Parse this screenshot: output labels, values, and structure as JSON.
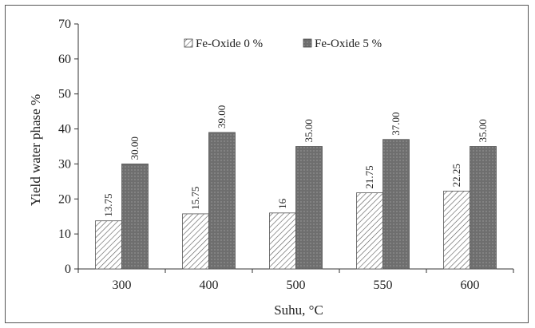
{
  "chart_data": {
    "type": "bar",
    "xlabel": "Suhu, °C",
    "ylabel": "Yield water phase %",
    "ylim": [
      0,
      70
    ],
    "yticks": [
      "0",
      "10",
      "20",
      "30",
      "40",
      "50",
      "60",
      "70"
    ],
    "categories": [
      "300",
      "400",
      "500",
      "550",
      "600"
    ],
    "legend_position": "top-center",
    "grid": false,
    "series": [
      {
        "name": "Fe-Oxide 0 %",
        "values": [
          13.75,
          15.75,
          16,
          21.75,
          22.25
        ],
        "labels": [
          "13.75",
          "15.75",
          "16",
          "21.75",
          "22.25"
        ],
        "pattern": "diagonal-hatch",
        "color": "#ffffff"
      },
      {
        "name": "Fe-Oxide 5 %",
        "values": [
          30.0,
          39.0,
          35.0,
          37.0,
          35.0
        ],
        "labels": [
          "30.00",
          "39.00",
          "35.00",
          "37.00",
          "35.00"
        ],
        "pattern": "dotted-dark",
        "color": "#6e6e6e"
      }
    ]
  }
}
